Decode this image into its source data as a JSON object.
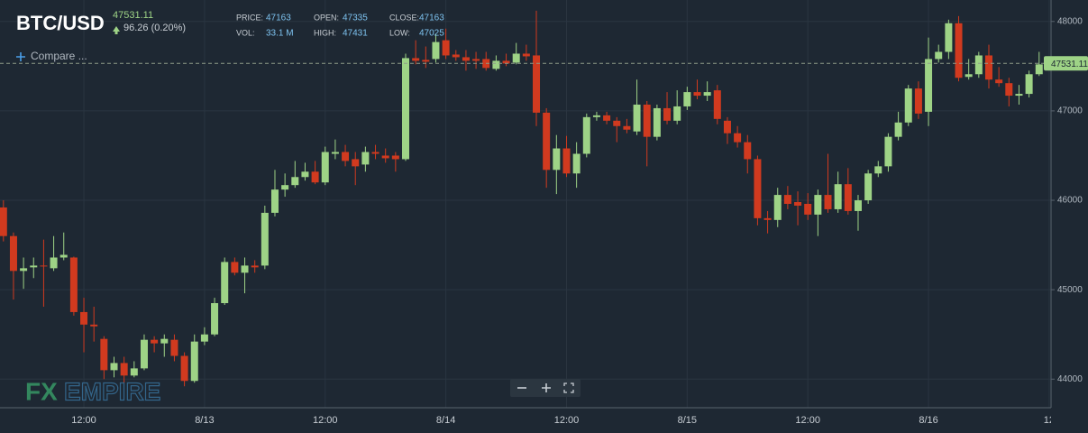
{
  "header": {
    "symbol": "BTC/USD",
    "last_price": 47531.11,
    "change": "96.26 (0.20%)",
    "stats": [
      {
        "label": "PRICE:",
        "value": 47163
      },
      {
        "label": "VOL:",
        "value": "33.1 M"
      },
      {
        "label": "OPEN:",
        "value": 47335
      },
      {
        "label": "HIGH:",
        "value": 47431
      },
      {
        "label": "CLOSE:",
        "value": 47163
      },
      {
        "label": "LOW:",
        "value": 47025
      }
    ],
    "compare": "Compare ..."
  },
  "watermark": {
    "left": "FX",
    "right": "EMPIRE"
  },
  "chart_data": {
    "type": "candlestick",
    "categories": [
      null,
      null,
      null,
      null,
      null,
      null,
      null,
      null,
      "12:00",
      null,
      null,
      null,
      null,
      null,
      null,
      null,
      null,
      null,
      null,
      null,
      "8/13",
      null,
      null,
      null,
      null,
      null,
      null,
      null,
      null,
      null,
      null,
      null,
      "12:00",
      null,
      null,
      null,
      null,
      null,
      null,
      null,
      null,
      null,
      null,
      null,
      "8/14",
      null,
      null,
      null,
      null,
      null,
      null,
      null,
      null,
      null,
      null,
      null,
      "12:00",
      null,
      null,
      null,
      null,
      null,
      null,
      null,
      null,
      null,
      null,
      null,
      "8/15",
      null,
      null,
      null,
      null,
      null,
      null,
      null,
      null,
      null,
      null,
      null,
      "12:00",
      null,
      null,
      null,
      null,
      null,
      null,
      null,
      null,
      null,
      null,
      null,
      "8/16",
      null,
      null,
      null,
      null,
      null,
      null,
      null,
      null,
      null,
      null,
      null,
      "12"
    ],
    "open": [
      45920,
      45600,
      45210,
      45250,
      45270,
      45240,
      45360,
      45360,
      44750,
      44610,
      44450,
      44100,
      44180,
      44040,
      44120,
      44440,
      44400,
      44440,
      44260,
      43980,
      44420,
      44500,
      44850,
      45310,
      45190,
      45270,
      45270,
      45860,
      46120,
      46170,
      46260,
      46320,
      46200,
      46520,
      46540,
      46460,
      46400,
      46540,
      46500,
      46500,
      46460,
      47590,
      47570,
      47580,
      47790,
      47630,
      47600,
      47580,
      47580,
      47470,
      47560,
      47540,
      47640,
      47620,
      46980,
      46340,
      46580,
      46300,
      46520,
      46930,
      46950,
      46890,
      46830,
      46770,
      47070,
      46710,
      47030,
      46890,
      47050,
      47210,
      47170,
      47230,
      46890,
      46750,
      46650,
      46460,
      45800,
      45780,
      46060,
      45980,
      45960,
      45840,
      46060,
      45900,
      46180,
      45880,
      46000,
      46300,
      46380,
      46710,
      46870,
      47250,
      46990,
      47580,
      47660,
      47980,
      47380,
      47410,
      47620,
      47350,
      47310,
      47170,
      47190,
      47410,
      null
    ],
    "high": [
      46000,
      45640,
      45360,
      45360,
      45560,
      45600,
      45640,
      45370,
      44910,
      44810,
      44480,
      44250,
      44250,
      44200,
      44500,
      44480,
      44500,
      44500,
      44300,
      44500,
      44580,
      44910,
      45360,
      45360,
      45360,
      45330,
      45940,
      46340,
      46300,
      46440,
      46420,
      46440,
      46600,
      46680,
      46620,
      46540,
      46600,
      46620,
      46580,
      46540,
      47640,
      47790,
      47720,
      47860,
      47920,
      47680,
      47680,
      47660,
      47660,
      47620,
      47640,
      47760,
      47740,
      48120,
      47030,
      46730,
      46720,
      46650,
      46970,
      46990,
      46990,
      46930,
      46910,
      47350,
      47110,
      47070,
      47210,
      47230,
      47270,
      47350,
      47330,
      47290,
      46930,
      46830,
      46730,
      46500,
      45880,
      46140,
      46160,
      46100,
      46080,
      46120,
      46520,
      46320,
      46360,
      46060,
      46340,
      46440,
      46750,
      46990,
      47290,
      47330,
      47820,
      47740,
      48020,
      48060,
      47580,
      47660,
      47740,
      47490,
      47370,
      47290,
      47450,
      47660,
      null
    ],
    "low": [
      45540,
      44890,
      45010,
      45130,
      44810,
      45210,
      45330,
      44710,
      44300,
      44420,
      44000,
      44020,
      43960,
      44020,
      44100,
      44300,
      44250,
      44200,
      43920,
      43960,
      44380,
      44480,
      44830,
      45160,
      44960,
      45190,
      45230,
      45820,
      46040,
      46140,
      46220,
      46180,
      46170,
      46460,
      46380,
      46170,
      46320,
      46460,
      46420,
      46320,
      46440,
      47520,
      47480,
      47540,
      47580,
      47560,
      47450,
      47470,
      47450,
      47450,
      47500,
      47520,
      47560,
      46830,
      46140,
      46070,
      46260,
      46140,
      46480,
      46890,
      46850,
      46650,
      46750,
      46730,
      46380,
      46670,
      46850,
      46850,
      47010,
      47130,
      47110,
      46850,
      46630,
      46590,
      46300,
      45720,
      45630,
      45700,
      45900,
      45720,
      45780,
      45600,
      45860,
      45860,
      45840,
      45660,
      45960,
      46260,
      46320,
      46670,
      46830,
      46910,
      46830,
      47540,
      47580,
      47330,
      47350,
      47370,
      47250,
      47270,
      47050,
      47070,
      47150,
      47390,
      null
    ],
    "close": [
      45600,
      45210,
      45240,
      45270,
      45260,
      45360,
      45390,
      44750,
      44610,
      44590,
      44100,
      44180,
      44040,
      44120,
      44440,
      44400,
      44450,
      44260,
      43980,
      44420,
      44500,
      44850,
      45310,
      45190,
      45270,
      45250,
      45860,
      46120,
      46170,
      46260,
      46320,
      46200,
      46540,
      46540,
      46440,
      46380,
      46540,
      46520,
      46470,
      46460,
      47590,
      47560,
      47550,
      47770,
      47620,
      47600,
      47560,
      47560,
      47480,
      47560,
      47530,
      47640,
      47610,
      46980,
      46340,
      46580,
      46300,
      46520,
      46930,
      46950,
      46890,
      46830,
      46790,
      47070,
      46710,
      47030,
      46890,
      47050,
      47210,
      47170,
      47210,
      46910,
      46750,
      46650,
      46460,
      45800,
      45780,
      46060,
      45960,
      45940,
      45840,
      46060,
      45900,
      46180,
      45880,
      46000,
      46300,
      46380,
      46710,
      46870,
      47250,
      46970,
      47580,
      47660,
      47980,
      47370,
      47410,
      47620,
      47350,
      47310,
      47170,
      47190,
      47410,
      47520,
      null
    ],
    "up_color": "#9ed386",
    "down_color": "#d13a1f",
    "ylim": [
      43680,
      48240
    ],
    "yticks": [
      44000,
      45000,
      46000,
      47000,
      48000
    ],
    "grid": true,
    "last_price": 47531.11
  }
}
